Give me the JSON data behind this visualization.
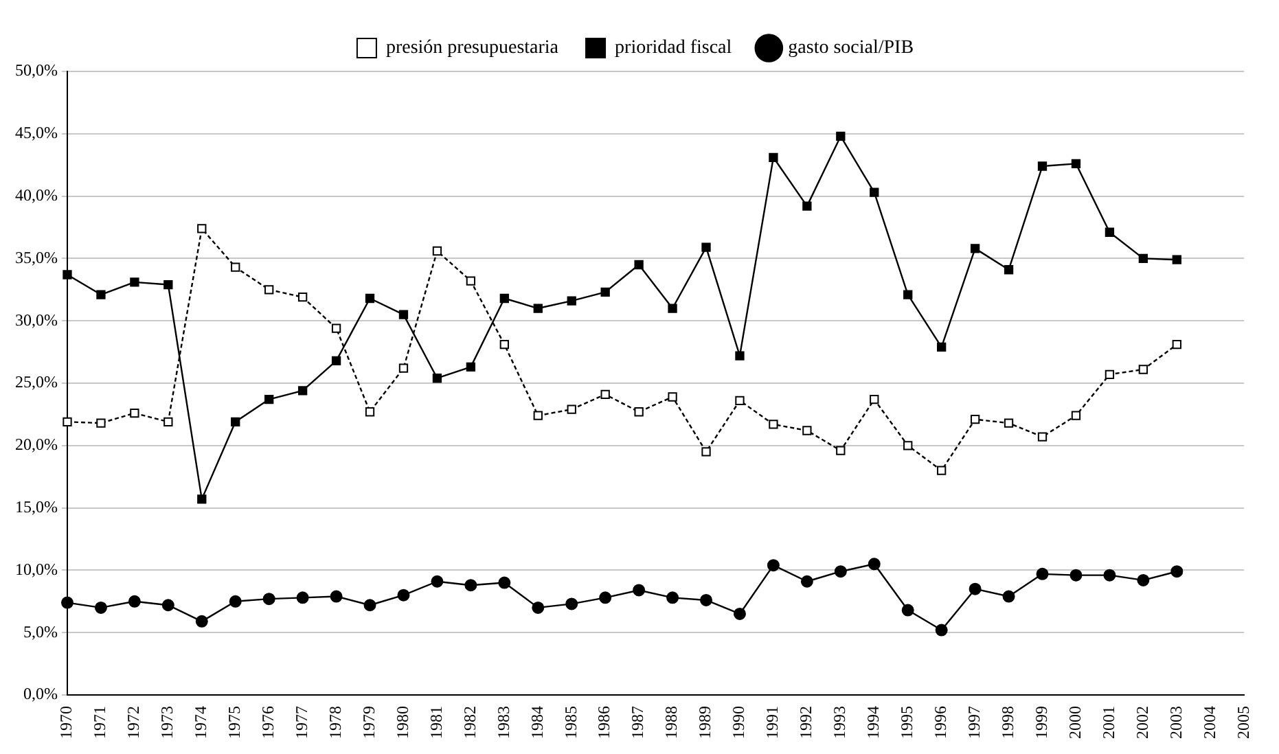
{
  "chart_data": {
    "type": "line",
    "categories": [
      "1970",
      "1971",
      "1972",
      "1973",
      "1974",
      "1975",
      "1976",
      "1977",
      "1978",
      "1979",
      "1980",
      "1981",
      "1982",
      "1983",
      "1984",
      "1985",
      "1986",
      "1987",
      "1988",
      "1989",
      "1990",
      "1991",
      "1992",
      "1993",
      "1994",
      "1995",
      "1996",
      "1997",
      "1998",
      "1999",
      "2000",
      "2001",
      "2002",
      "2003",
      "2004",
      "2005"
    ],
    "series": [
      {
        "name": "presión presupuestaria",
        "color": "#000000",
        "marker": "square",
        "line_style": "dashed",
        "values": [
          21.9,
          21.8,
          22.6,
          21.9,
          37.4,
          34.3,
          32.5,
          31.9,
          29.4,
          22.7,
          26.2,
          35.6,
          33.2,
          28.1,
          22.4,
          22.9,
          24.1,
          22.7,
          23.9,
          19.5,
          23.6,
          21.7,
          21.2,
          19.6,
          23.7,
          20.0,
          18.0,
          22.1,
          21.8,
          20.7,
          22.4,
          25.7,
          26.1,
          28.1,
          null,
          null
        ]
      },
      {
        "name": "prioridad fiscal",
        "color": "#000000",
        "marker": "square",
        "line_style": "solid",
        "values": [
          33.7,
          32.1,
          33.1,
          32.9,
          15.7,
          21.9,
          23.7,
          24.4,
          26.8,
          31.8,
          30.5,
          25.4,
          26.3,
          31.8,
          31.0,
          31.6,
          32.3,
          34.5,
          31.0,
          35.9,
          27.2,
          43.1,
          39.2,
          44.8,
          40.3,
          32.1,
          27.9,
          35.8,
          34.1,
          42.4,
          42.6,
          37.1,
          35.0,
          34.9,
          null,
          null
        ]
      },
      {
        "name": "gasto social/PIB",
        "color": "#000000",
        "marker": "circle",
        "line_style": "solid",
        "values": [
          7.4,
          7.0,
          7.5,
          7.2,
          5.9,
          7.5,
          7.7,
          7.8,
          7.9,
          7.2,
          8.0,
          9.1,
          8.8,
          9.0,
          7.0,
          7.3,
          7.8,
          8.4,
          7.8,
          7.6,
          6.5,
          10.4,
          9.1,
          9.9,
          10.5,
          6.8,
          5.2,
          8.5,
          7.9,
          9.7,
          9.6,
          9.6,
          9.2,
          9.9,
          null,
          null
        ]
      }
    ],
    "ylim": [
      0,
      50
    ],
    "yticks": [
      {
        "value": 0,
        "label": "0,0%"
      },
      {
        "value": 5,
        "label": "5,0%"
      },
      {
        "value": 10,
        "label": "10,0%"
      },
      {
        "value": 15,
        "label": "15,0%"
      },
      {
        "value": 20,
        "label": "20,0%"
      },
      {
        "value": 25,
        "label": "25,0%"
      },
      {
        "value": 30,
        "label": "30,0%"
      },
      {
        "value": 35,
        "label": "35,0%"
      },
      {
        "value": 40,
        "label": "40,0%"
      },
      {
        "value": 45,
        "label": "45,0%"
      },
      {
        "value": 50,
        "label": "50,0%"
      }
    ],
    "grid": "y",
    "legend": "top"
  }
}
